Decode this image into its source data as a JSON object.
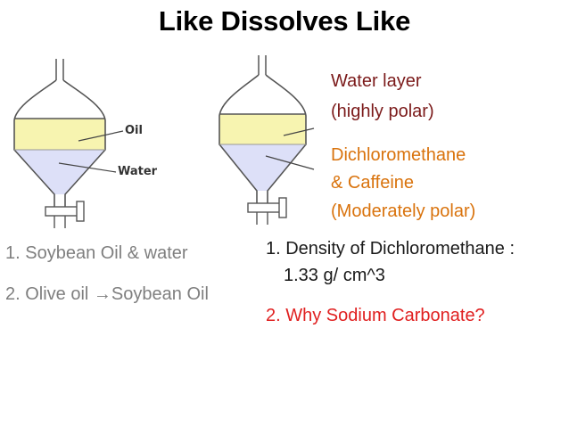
{
  "title": "Like Dissolves Like",
  "left_funnel": {
    "top_label": "Oil",
    "bottom_label": "Water"
  },
  "right_funnel_annotations": {
    "upper_line1": "Water layer",
    "upper_line2": "(highly polar)",
    "lower_line1": "Dichloromethane",
    "lower_line2": "& Caffeine",
    "lower_line3": "(Moderately polar)"
  },
  "left_list": [
    "1. Soybean Oil & water",
    "2. Olive oil →Soybean Oil"
  ],
  "right_list": {
    "item1_line1": "1. Density of Dichloromethane :",
    "item1_line2": "1.33 g/ cm^3",
    "item2": "2. Why Sodium Carbonate?"
  },
  "colors": {
    "top_layer": "#f7f4b0",
    "bottom_layer": "#dde0f8",
    "funnel_stroke": "#555555",
    "water_layer_text": "#7b1a1a",
    "dcm_text": "#d9730d",
    "question_text": "#e02020",
    "left_list_text": "#7f7f7f"
  }
}
